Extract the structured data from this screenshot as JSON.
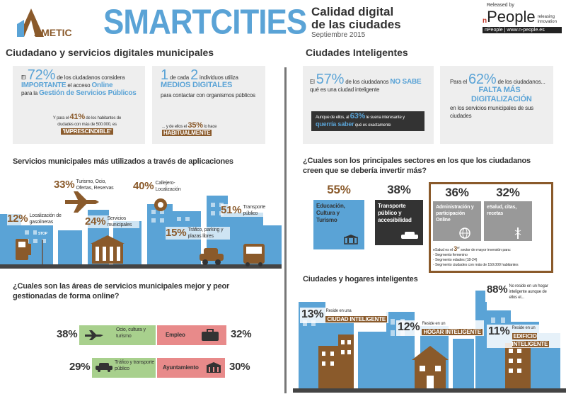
{
  "header": {
    "ametic": "AMETIC",
    "smartcities": "SMARTCITIES",
    "title_line1": "Calidad digital",
    "title_line2": "de las ciudades",
    "date": "Septiembre 2015",
    "released_by": "Released by",
    "npeople_brand": "People",
    "npeople_tag1": "releasing",
    "npeople_tag2": "innovation",
    "npeople_url": "nPeople | www.n-people.es"
  },
  "left": {
    "section_title": "Ciudadano y servicios digitales municipales",
    "box1": {
      "pre": "El",
      "pct": "72%",
      "l1": "de los ciudadanos considera",
      "important": "IMPORTANTE",
      "l2": "el acceso",
      "online": "Online",
      "l3": "para la",
      "gestion": "Gestión de Servicios Públicos",
      "sub_pre": "Y para el",
      "sub_pct": "41%",
      "sub_l1": "de los habitantes de",
      "sub_l2": "ciudades con más de 500.000, es",
      "sub_hl": "'IMPRESCINDIBLE'"
    },
    "box2": {
      "one": "1",
      "decada": "de cada",
      "two": "2",
      "l1": "individuos utiliza",
      "medios": "MEDIOS DIGITALES",
      "l2": "para contactar con organismos públicos",
      "sub_l1": "... y de ellos el",
      "sub_pct": "35%",
      "sub_l2": "lo hace",
      "sub_hl": "HABITUALMENTE"
    },
    "apps_title": "Servicios municipales más utilizados a través de aplicaciones",
    "apps": [
      {
        "pct": "33%",
        "label": "Turismo, Ocio, Ofertas, Reservas"
      },
      {
        "pct": "40%",
        "label": "Callejero- Localización"
      },
      {
        "pct": "12%",
        "label": "Localización de gasolineras"
      },
      {
        "pct": "24%",
        "label": "Servicios municipales"
      },
      {
        "pct": "51%",
        "label": "Transporte público"
      },
      {
        "pct": "15%",
        "label": "Tráfico, parking y plazas libres"
      }
    ],
    "stop_label": "STOP",
    "areas_title": "¿Cuales son las áreas de servicios municipales mejor y peor gestionadas de forma online?",
    "areas": {
      "best": [
        {
          "pct": "38%",
          "label": "Ocio, cultura y turismo"
        },
        {
          "pct": "29%",
          "label": "Tráfico y transporte público"
        }
      ],
      "worst": [
        {
          "pct": "32%",
          "label": "Empleo"
        },
        {
          "pct": "30%",
          "label": "Ayuntamiento"
        }
      ]
    }
  },
  "right": {
    "section_title": "Ciudades Inteligentes",
    "box1": {
      "pre": "El",
      "pct": "57%",
      "l1": "de los ciudadanos",
      "nosabe": "NO SABE",
      "l2": "qué es una ciudad inteligente",
      "sub_l1": "Aunque de ellos, al",
      "sub_pct": "63%",
      "sub_l2": "le suena interesante y",
      "sub_hl": "querría saber",
      "sub_l3": "qué es exactamente"
    },
    "box2": {
      "pre": "Para el",
      "pct": "62%",
      "l1": "de los ciudadanos...",
      "hl": "FALTA MÁS DIGITALIZACIÓN",
      "l2": "en los servicios municipales de sus ciudades"
    },
    "sectors_title": "¿Cuales son los principales sectores en los que los ciudadanos creen que se debería invertir más?",
    "sectors": [
      {
        "pct": "55%",
        "label": "Educación, Cultura y Turismo"
      },
      {
        "pct": "38%",
        "label": "Transporte público y accesibilidad"
      },
      {
        "pct": "36%",
        "label": "Administración y participación Online"
      },
      {
        "pct": "32%",
        "label": "eSalud, citas, recetas"
      }
    ],
    "esalud_note": {
      "l1a": "eSalud es el",
      "num": "3",
      "sup": "er",
      "l1b": "sector de mayor inversión para:",
      "items": [
        "- Segmento femenino",
        "- Segmento edades (18-24)",
        "- Segmento ciudades con más de 150.000 habitantes"
      ]
    },
    "homes_title": "Ciudades y hogares inteligentes",
    "homes": [
      {
        "pct": "13%",
        "pre": "Reside en una",
        "label": "CIUDAD INTELIGENTE"
      },
      {
        "pct": "12%",
        "pre": "Reside en un",
        "label": "HOGAR INTELIGENTE"
      },
      {
        "pct": "11%",
        "pre": "Reside en un",
        "label": "EDIFICIO INTELIGENTE"
      }
    ],
    "no_reside": {
      "pct": "88%",
      "text": "No reside en un hogar inteligente aunque de ellos el..."
    }
  },
  "colors": {
    "blue": "#5aa3d6",
    "brown": "#8a5a2b",
    "green": "#a8d08d",
    "red": "#e88a8a",
    "dark": "#333333"
  }
}
